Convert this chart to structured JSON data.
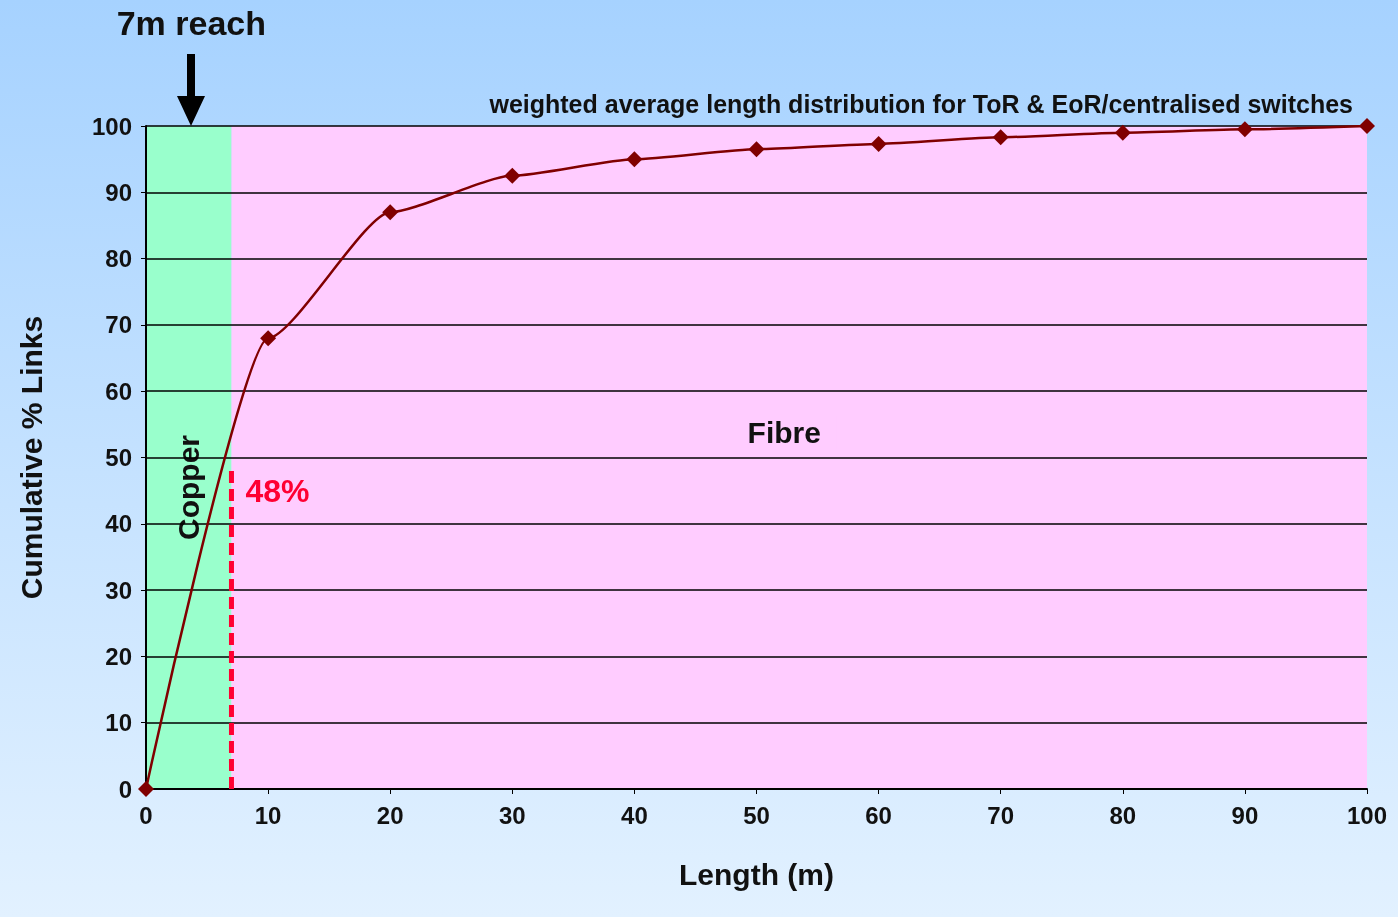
{
  "chart_data": {
    "type": "line",
    "title": "weighted average length distribution for ToR & EoR/centralised switches",
    "xlabel": "Length (m)",
    "ylabel": "Cumulative % Links",
    "x": [
      0,
      10,
      20,
      30,
      40,
      50,
      60,
      70,
      80,
      90,
      100
    ],
    "series": [
      {
        "color": "#800000",
        "values": [
          0,
          68,
          87,
          92.5,
          95,
          96.5,
          97.3,
          98.3,
          99,
          99.5,
          100
        ]
      },
      {
        "type": "line",
        "x": [
          7,
          7
        ],
        "values": [
          0,
          48
        ],
        "color": "#ff0033",
        "line_style": "dashed",
        "marker": "none"
      }
    ],
    "marker": "diamond",
    "line_style": "solid",
    "grid": "y",
    "xlim": [
      0,
      100
    ],
    "xticks": [
      0,
      10,
      20,
      30,
      40,
      50,
      60,
      70,
      80,
      90,
      100
    ],
    "ylim": [
      0,
      100
    ],
    "yticks": [
      0,
      10,
      20,
      30,
      40,
      50,
      60,
      70,
      80,
      90,
      100
    ],
    "bands": [
      {
        "axis": "x",
        "from": 0,
        "to": 7,
        "label": "Copper",
        "color": "#99ffcc"
      },
      {
        "axis": "x",
        "from": 7,
        "to": 100,
        "label": "Fibre",
        "color": "#ffccff"
      }
    ],
    "annotations": [
      {
        "text": "7m reach",
        "x": 3.7,
        "y": 100
      },
      {
        "text": "48%",
        "x": 7,
        "y": 48
      }
    ]
  }
}
